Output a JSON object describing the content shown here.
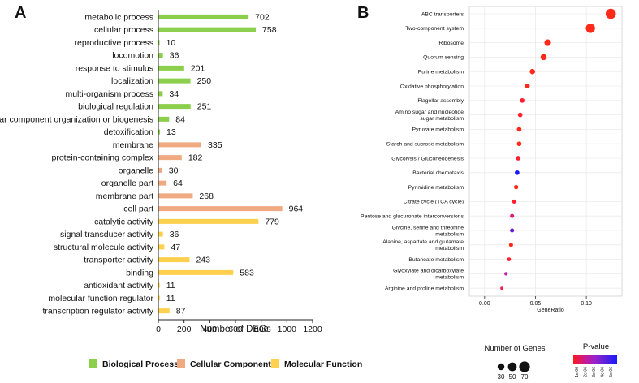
{
  "chart_data": [
    {
      "panel_label": "A",
      "type": "bar",
      "orientation": "horizontal",
      "xlabel": "Number of DEGs",
      "xlim": [
        0,
        1200
      ],
      "xticks": [
        0,
        200,
        400,
        600,
        800,
        1000,
        1200
      ],
      "categories": [
        "metabolic process",
        "cellular process",
        "reproductive process",
        "locomotion",
        "response to stimulus",
        "localization",
        "multi-organism process",
        "biological regulation",
        "cellular component organization or biogenesis",
        "detoxification",
        "membrane",
        "protein-containing complex",
        "organelle",
        "organelle part",
        "membrane part",
        "cell part",
        "catalytic activity",
        "signal transducer activity",
        "structural molecule activity",
        "transporter activity",
        "binding",
        "antioxidant activity",
        "molecular function regulator",
        "transcription regulator activity"
      ],
      "values": [
        702,
        758,
        10,
        36,
        201,
        250,
        34,
        251,
        84,
        13,
        335,
        182,
        30,
        64,
        268,
        964,
        779,
        36,
        47,
        243,
        583,
        11,
        11,
        87
      ],
      "groups": [
        0,
        0,
        0,
        0,
        0,
        0,
        0,
        0,
        0,
        0,
        1,
        1,
        1,
        1,
        1,
        1,
        2,
        2,
        2,
        2,
        2,
        2,
        2,
        2
      ],
      "legend": [
        {
          "name": "Biological Process",
          "color": "#8ccf4d"
        },
        {
          "name": "Cellular Component",
          "color": "#f0aa82"
        },
        {
          "name": "Molecular Function",
          "color": "#ffd04d"
        }
      ],
      "legend_placement": "bottom",
      "grid": false
    },
    {
      "panel_label": "B",
      "type": "scatter",
      "xlabel": "GeneRatio",
      "xlim": [
        -0.015,
        0.135
      ],
      "xticks": [
        "0.00",
        "0.05",
        "0.10"
      ],
      "xtick_values": [
        0,
        0.05,
        0.1
      ],
      "grid": true,
      "categories": [
        [
          "ABC transporters"
        ],
        [
          "Two-component system"
        ],
        [
          "Ribosome"
        ],
        [
          "Quorum sensing"
        ],
        [
          "Purine metabolism"
        ],
        [
          "Oxidative phosphorylation"
        ],
        [
          "Flagellar assembly"
        ],
        [
          "Amino sugar and nucleotide",
          "sugar metabolism"
        ],
        [
          "Pyruvate metabolism"
        ],
        [
          "Starch and sucrose metabolism"
        ],
        [
          "Glycolysis / Gluconeogenesis"
        ],
        [
          "Bacterial chemotaxis"
        ],
        [
          "Pyrimidine metabolism"
        ],
        [
          "Citrate cycle (TCA cycle)"
        ],
        [
          "Pentose and glucuronate interconversions"
        ],
        [
          "Glycine, serine and threonine",
          "metabolism"
        ],
        [
          "Alanine, aspartate and glutamate",
          "metabolism"
        ],
        [
          "Butanoate metabolism"
        ],
        [
          "Glyoxylate and dicarboxylate",
          "metabolism"
        ],
        [
          "Arginine and proline metabolism"
        ]
      ],
      "x": [
        0.124,
        0.104,
        0.062,
        0.058,
        0.047,
        0.042,
        0.037,
        0.035,
        0.034,
        0.034,
        0.033,
        0.032,
        0.031,
        0.029,
        0.027,
        0.027,
        0.026,
        0.024,
        0.021,
        0.017
      ],
      "gene_counts": [
        70,
        62,
        40,
        36,
        30,
        27,
        24,
        24,
        24,
        24,
        24,
        24,
        22,
        20,
        20,
        20,
        20,
        18,
        14,
        12
      ],
      "colors": [
        "#ff2a1a",
        "#ff2a1a",
        "#ff2a1a",
        "#ff2a1a",
        "#ff2a1a",
        "#ff2a1a",
        "#ff2030",
        "#ff2030",
        "#ff2a1a",
        "#ff2a1a",
        "#ff2030",
        "#1a1aff",
        "#ff2a1a",
        "#ff2030",
        "#e01a70",
        "#6a1acc",
        "#ff2a1a",
        "#ff2030",
        "#cc1aa8",
        "#ff2050"
      ],
      "size_legend": {
        "title": "Number of Genes",
        "values": [
          "30",
          "50",
          "70"
        ]
      },
      "color_legend": {
        "title": "P-value",
        "ticks": [
          "1e-06",
          "2e-06",
          "3e-06",
          "4e-06",
          "5e-06"
        ],
        "colors": [
          "#ff1a1a",
          "#cc1a8a",
          "#9922cc",
          "#5522dd",
          "#1a1aff"
        ]
      }
    }
  ]
}
